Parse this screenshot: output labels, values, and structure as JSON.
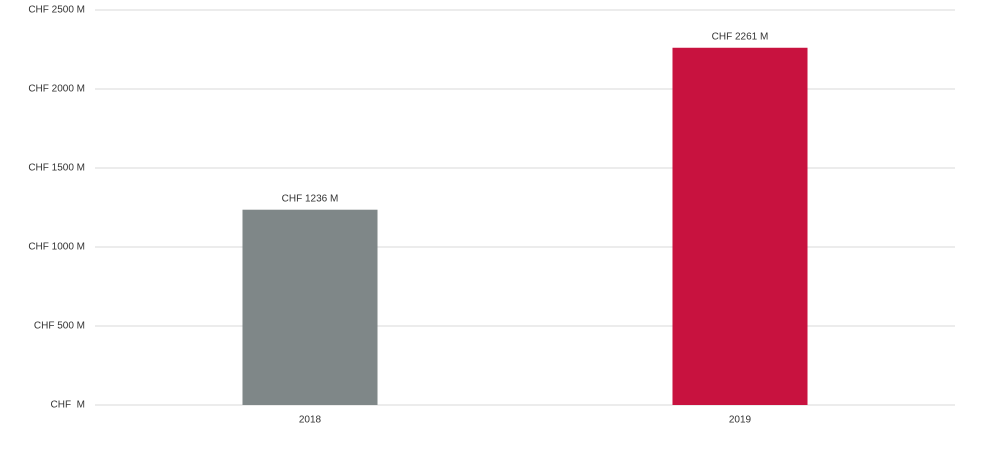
{
  "chart_data": {
    "type": "bar",
    "categories": [
      "2018",
      "2019"
    ],
    "values": [
      1236,
      2261
    ],
    "value_labels": [
      "CHF 1236 M",
      "CHF 2261 M"
    ],
    "colors": [
      "#7f8788",
      "#c8123f"
    ],
    "ylim": [
      0,
      2500
    ],
    "yticks": [
      {
        "value": 0,
        "label": "CHF  M"
      },
      {
        "value": 500,
        "label": "CHF 500 M"
      },
      {
        "value": 1000,
        "label": "CHF 1000 M"
      },
      {
        "value": 1500,
        "label": "CHF 1500 M"
      },
      {
        "value": 2000,
        "label": "CHF 2000 M"
      },
      {
        "value": 2500,
        "label": "CHF 2500 M"
      }
    ],
    "grid": true
  }
}
